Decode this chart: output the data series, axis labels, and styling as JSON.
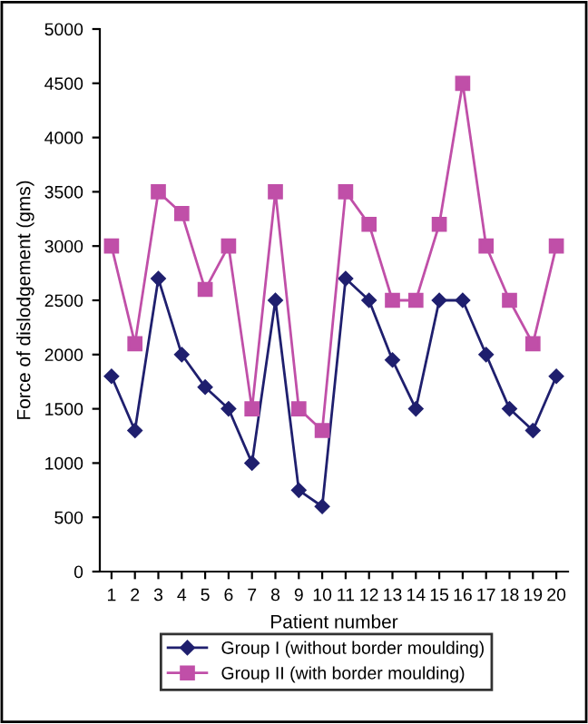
{
  "chart_data": {
    "type": "line",
    "xlabel": "Patient number",
    "ylabel": "Force of dislodgement (gms)",
    "categories": [
      "1",
      "2",
      "3",
      "4",
      "5",
      "6",
      "7",
      "8",
      "9",
      "10",
      "11",
      "12",
      "13",
      "14",
      "15",
      "16",
      "17",
      "18",
      "19",
      "20"
    ],
    "series": [
      {
        "name": "Group I (without border moulding)",
        "color": "#1f1f6e",
        "marker": "diamond",
        "values": [
          1800,
          1300,
          2700,
          2000,
          1700,
          1500,
          1000,
          2500,
          750,
          600,
          2700,
          2500,
          1950,
          1500,
          2500,
          2500,
          2000,
          1500,
          1300,
          1800
        ]
      },
      {
        "name": "Group II (with border moulding)",
        "color": "#c04fa8",
        "marker": "square",
        "values": [
          3000,
          2100,
          3500,
          3300,
          2600,
          3000,
          1500,
          3500,
          1500,
          1300,
          3500,
          3200,
          2500,
          2500,
          3200,
          4500,
          3000,
          2500,
          2100,
          3000
        ]
      }
    ],
    "ylim": [
      0,
      5000
    ],
    "yticks": [
      0,
      500,
      1000,
      1500,
      2000,
      2500,
      3000,
      3500,
      4000,
      4500,
      5000
    ],
    "grid": false,
    "legend": "bottom"
  }
}
